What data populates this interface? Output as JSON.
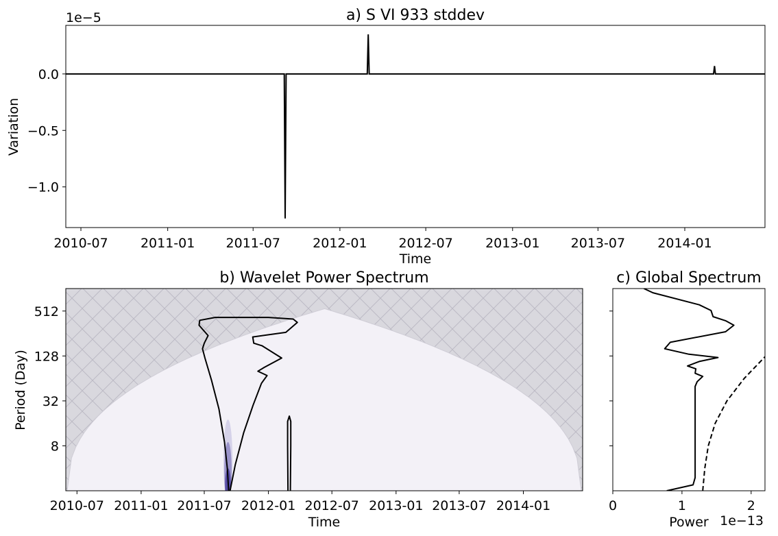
{
  "chart_data": [
    {
      "type": "line",
      "title": "a) S VI 933 stddev",
      "xlabel": "Time",
      "ylabel": "Variation",
      "offset_text": "1e−5",
      "x_start": "2010-05-30",
      "x_end": "2014-06-20",
      "xtick_labels": [
        "2010-07",
        "2011-01",
        "2011-07",
        "2012-01",
        "2012-07",
        "2013-01",
        "2013-07",
        "2014-01"
      ],
      "xtick_dates": [
        "2010-07-01",
        "2011-01-01",
        "2011-07-01",
        "2012-01-01",
        "2012-07-01",
        "2013-01-01",
        "2013-07-01",
        "2014-01-01"
      ],
      "ytick_labels": [
        "0.0",
        "−0.5",
        "−1.0"
      ],
      "ytick_values": [
        0.0,
        -0.5,
        -1.0
      ],
      "ylim": [
        -1.36,
        0.43
      ],
      "scale": 1e-05,
      "baseline": 0.0,
      "series": [
        {
          "color": "#000000",
          "points": [
            {
              "x": "2010-05-30",
              "y": 0.0
            },
            {
              "x": "2011-09-05",
              "y": 0.0
            },
            {
              "x": "2011-09-07",
              "y": -1.28
            },
            {
              "x": "2011-09-09",
              "y": 0.0
            },
            {
              "x": "2012-02-28",
              "y": 0.0
            },
            {
              "x": "2012-03-01",
              "y": 0.35
            },
            {
              "x": "2012-03-03",
              "y": 0.0
            },
            {
              "x": "2014-03-03",
              "y": 0.0
            },
            {
              "x": "2014-03-05",
              "y": 0.07
            },
            {
              "x": "2014-03-07",
              "y": 0.0
            },
            {
              "x": "2014-06-20",
              "y": 0.0
            }
          ]
        }
      ]
    },
    {
      "type": "heatmap",
      "title": "b) Wavelet Power Spectrum",
      "xlabel": "Time",
      "ylabel": "Period (Day)",
      "y_scale": "log2",
      "x_start": "2010-05-30",
      "x_end": "2014-06-20",
      "xtick_labels": [
        "2010-07",
        "2011-01",
        "2011-07",
        "2012-01",
        "2012-07",
        "2013-01",
        "2013-07",
        "2014-01"
      ],
      "xtick_dates": [
        "2010-07-01",
        "2011-01-01",
        "2011-07-01",
        "2012-01-01",
        "2012-07-01",
        "2013-01-01",
        "2013-07-01",
        "2014-01-01"
      ],
      "ytick_labels": [
        "512",
        "128",
        "32",
        "8"
      ],
      "ytick_values": [
        512,
        128,
        32,
        8
      ],
      "ylim": [
        2,
        1024
      ],
      "background_color": "#f3f1f7",
      "coi_color": "#d9d8de",
      "coi_peak": {
        "x": "2012-06-10",
        "y": 550
      },
      "blobs": [
        {
          "x": "2011-09-07",
          "y_low": 2,
          "y_high": 18,
          "color": "#cfcde6"
        },
        {
          "x": "2011-09-07",
          "y_low": 2,
          "y_high": 9,
          "color": "#8f8ac4"
        },
        {
          "x": "2011-09-07",
          "y_low": 2,
          "y_high": 4,
          "color": "#4b3fa0"
        }
      ],
      "contours": [
        {
          "color": "#000000",
          "points": [
            {
              "x": "2011-09-13",
              "y": 2.0
            },
            {
              "x": "2011-09-28",
              "y": 4.5
            },
            {
              "x": "2011-10-22",
              "y": 12.0
            },
            {
              "x": "2011-11-18",
              "y": 28.0
            },
            {
              "x": "2011-12-12",
              "y": 55.0
            },
            {
              "x": "2011-12-28",
              "y": 70.0
            },
            {
              "x": "2011-12-02",
              "y": 80.0
            },
            {
              "x": "2011-12-20",
              "y": 90.0
            },
            {
              "x": "2012-02-08",
              "y": 120.0
            },
            {
              "x": "2011-12-14",
              "y": 175.0
            },
            {
              "x": "2011-11-20",
              "y": 190.0
            },
            {
              "x": "2011-11-17",
              "y": 230.0
            },
            {
              "x": "2012-02-20",
              "y": 265.0
            },
            {
              "x": "2012-03-24",
              "y": 360.0
            },
            {
              "x": "2012-03-12",
              "y": 400.0
            },
            {
              "x": "2012-01-01",
              "y": 420.0
            },
            {
              "x": "2011-08-01",
              "y": 420.0
            },
            {
              "x": "2011-06-18",
              "y": 385.0
            },
            {
              "x": "2011-06-16",
              "y": 330.0
            },
            {
              "x": "2011-06-24",
              "y": 300.0
            },
            {
              "x": "2011-07-12",
              "y": 240.0
            },
            {
              "x": "2011-07-01",
              "y": 190.0
            },
            {
              "x": "2011-06-26",
              "y": 160.0
            },
            {
              "x": "2011-07-03",
              "y": 120.0
            },
            {
              "x": "2011-07-22",
              "y": 60.0
            },
            {
              "x": "2011-08-12",
              "y": 25.0
            },
            {
              "x": "2011-08-28",
              "y": 9.0
            },
            {
              "x": "2011-09-05",
              "y": 4.0
            },
            {
              "x": "2011-09-09",
              "y": 2.0
            }
          ]
        },
        {
          "color": "#000000",
          "points": [
            {
              "x": "2012-02-26",
              "y": 2.0
            },
            {
              "x": "2012-02-25",
              "y": 8.0
            },
            {
              "x": "2012-02-25",
              "y": 17.0
            },
            {
              "x": "2012-03-01",
              "y": 20.0
            },
            {
              "x": "2012-03-05",
              "y": 17.0
            },
            {
              "x": "2012-03-05",
              "y": 8.0
            },
            {
              "x": "2012-03-04",
              "y": 2.0
            }
          ]
        }
      ]
    },
    {
      "type": "line",
      "title": "c) Global Spectrum",
      "xlabel": "Power",
      "offset_text": "1e−13",
      "xtick_labels": [
        "0",
        "1",
        "2"
      ],
      "xtick_values": [
        0,
        1,
        2
      ],
      "xlim": [
        0,
        2.2
      ],
      "scale": 1e-13,
      "y_scale": "log2",
      "ylim": [
        2,
        1024
      ],
      "series": [
        {
          "style": "solid",
          "color": "#000000",
          "points": [
            {
              "x": 0.78,
              "y": 2.0
            },
            {
              "x": 1.16,
              "y": 2.4
            },
            {
              "x": 1.19,
              "y": 3.0
            },
            {
              "x": 1.19,
              "y": 50.0
            },
            {
              "x": 1.22,
              "y": 58.0
            },
            {
              "x": 1.3,
              "y": 68.0
            },
            {
              "x": 1.19,
              "y": 75.0
            },
            {
              "x": 1.2,
              "y": 86.0
            },
            {
              "x": 1.08,
              "y": 94.0
            },
            {
              "x": 1.25,
              "y": 108.0
            },
            {
              "x": 1.52,
              "y": 122.0
            },
            {
              "x": 1.1,
              "y": 135.0
            },
            {
              "x": 0.75,
              "y": 160.0
            },
            {
              "x": 0.83,
              "y": 195.0
            },
            {
              "x": 1.63,
              "y": 270.0
            },
            {
              "x": 1.75,
              "y": 330.0
            },
            {
              "x": 1.63,
              "y": 380.0
            },
            {
              "x": 1.45,
              "y": 430.0
            },
            {
              "x": 1.42,
              "y": 520.0
            },
            {
              "x": 1.25,
              "y": 620.0
            },
            {
              "x": 0.58,
              "y": 900.0
            },
            {
              "x": 0.45,
              "y": 1024.0
            }
          ]
        },
        {
          "style": "dashed",
          "color": "#000000",
          "points": [
            {
              "x": 1.3,
              "y": 2.0
            },
            {
              "x": 1.33,
              "y": 4.0
            },
            {
              "x": 1.38,
              "y": 8.0
            },
            {
              "x": 1.48,
              "y": 16.0
            },
            {
              "x": 1.65,
              "y": 32.0
            },
            {
              "x": 1.9,
              "y": 64.0
            },
            {
              "x": 2.2,
              "y": 125.0
            }
          ]
        }
      ]
    }
  ]
}
